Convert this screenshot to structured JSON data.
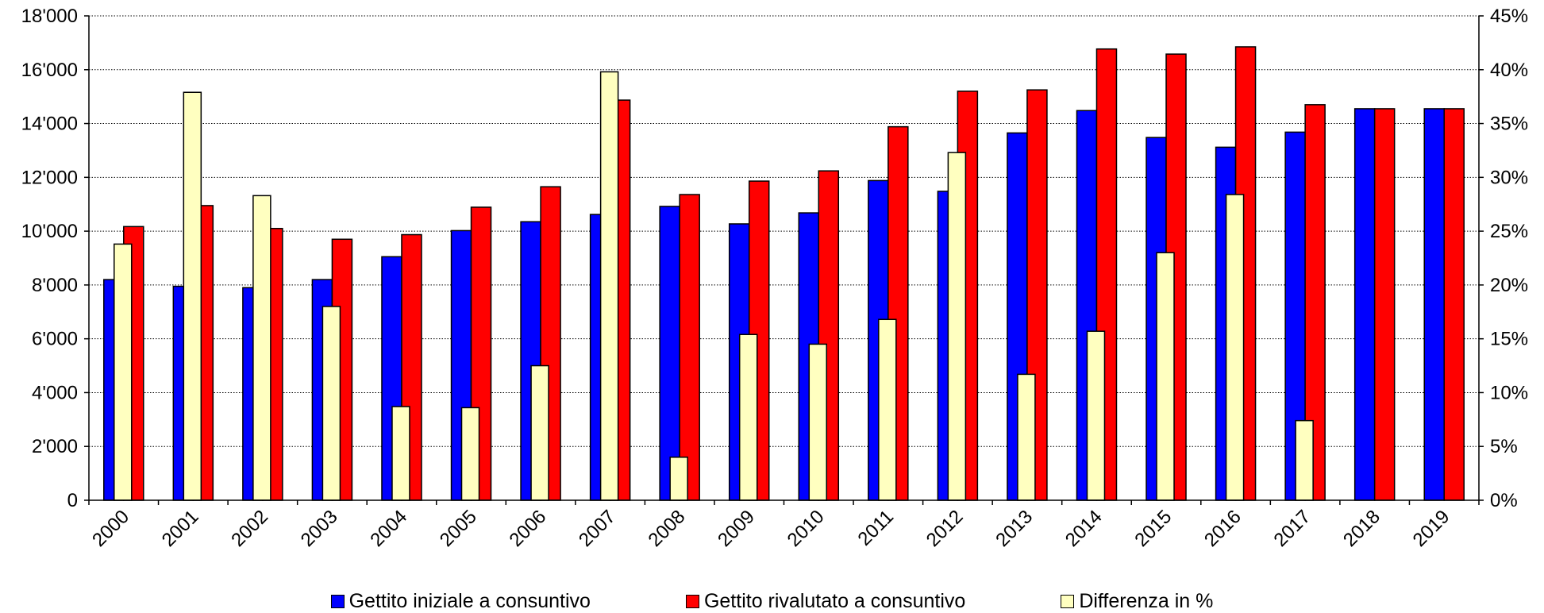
{
  "chart_data": {
    "type": "bar",
    "categories": [
      "2000",
      "2001",
      "2002",
      "2003",
      "2004",
      "2005",
      "2006",
      "2007",
      "2008",
      "2009",
      "2010",
      "2011",
      "2012",
      "2013",
      "2014",
      "2015",
      "2016",
      "2017",
      "2018",
      "2019"
    ],
    "series": [
      {
        "name": "Gettito iniziale a consuntivo",
        "axis": "left",
        "color": "#0000ff",
        "values": [
          8200,
          7950,
          7900,
          8200,
          9050,
          10020,
          10350,
          10620,
          10920,
          10270,
          10680,
          11880,
          11480,
          13650,
          14480,
          13480,
          13120,
          13680,
          14550,
          14550
        ]
      },
      {
        "name": "Gettito rivalutato a consuntivo",
        "axis": "right-as-left",
        "color": "#ff0000",
        "values": [
          10170,
          10950,
          10100,
          9700,
          9870,
          10890,
          11650,
          14870,
          11360,
          11860,
          12240,
          13880,
          15200,
          15250,
          16770,
          16580,
          16850,
          14700,
          14550,
          14550
        ]
      },
      {
        "name": "Differenza in %",
        "axis": "right",
        "color": "#ffffc0",
        "values": [
          23.8,
          37.9,
          28.3,
          18.0,
          8.7,
          8.6,
          12.5,
          39.8,
          4.0,
          15.4,
          14.5,
          16.8,
          32.3,
          11.7,
          15.7,
          23.0,
          28.4,
          7.4,
          0,
          0
        ]
      }
    ],
    "y_left": {
      "min": 0,
      "max": 18000,
      "ticks": [
        "0",
        "2'000",
        "4'000",
        "6'000",
        "8'000",
        "10'000",
        "12'000",
        "14'000",
        "16'000",
        "18'000"
      ]
    },
    "y_right": {
      "min": 0,
      "max": 45,
      "ticks": [
        "0%",
        "5%",
        "10%",
        "15%",
        "20%",
        "25%",
        "30%",
        "35%",
        "40%",
        "45%"
      ]
    },
    "grid": true,
    "legend_position": "bottom"
  }
}
